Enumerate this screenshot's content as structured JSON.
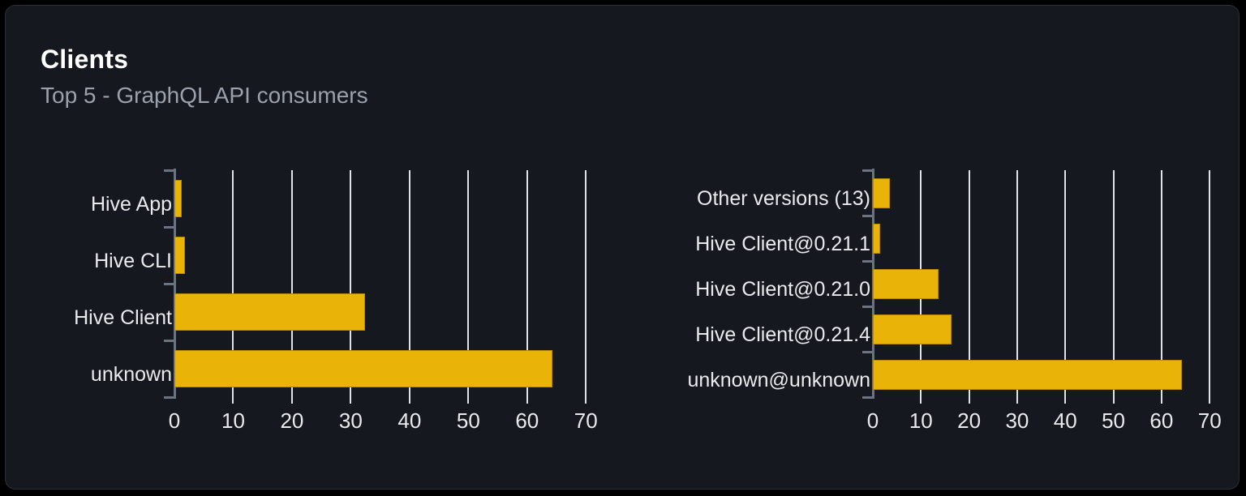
{
  "header": {
    "title": "Clients",
    "subtitle": "Top 5 - GraphQL API consumers"
  },
  "colors": {
    "bar": "#eab308",
    "page_background": "#000000",
    "card_background": "#15181e",
    "card_border": "#2b2f36",
    "gridline": "#dfe3e9",
    "axis": "#6b7280",
    "title_text": "#ffffff",
    "subtitle_text": "#9ba1ab",
    "axis_label_text": "#e8eaed"
  },
  "chart_data": [
    {
      "type": "bar",
      "orientation": "horizontal",
      "categories": [
        "Hive App",
        "Hive CLI",
        "Hive Client",
        "unknown"
      ],
      "values": [
        1.3,
        1.8,
        32.4,
        64.3
      ],
      "xlabel": "",
      "ylabel": "",
      "xlim": [
        0,
        73
      ],
      "xticks": [
        0,
        10,
        20,
        30,
        40,
        50,
        60,
        70
      ],
      "grid": true,
      "legend": false
    },
    {
      "type": "bar",
      "orientation": "horizontal",
      "categories": [
        "Other versions (13)",
        "Hive Client@0.21.1",
        "Hive Client@0.21.0",
        "Hive Client@0.21.4",
        "unknown@unknown"
      ],
      "values": [
        3.6,
        1.6,
        13.7,
        16.3,
        64.3
      ],
      "xlabel": "",
      "ylabel": "",
      "xlim": [
        0,
        73
      ],
      "xticks": [
        0,
        10,
        20,
        30,
        40,
        50,
        60,
        70
      ],
      "grid": true,
      "legend": false
    }
  ]
}
